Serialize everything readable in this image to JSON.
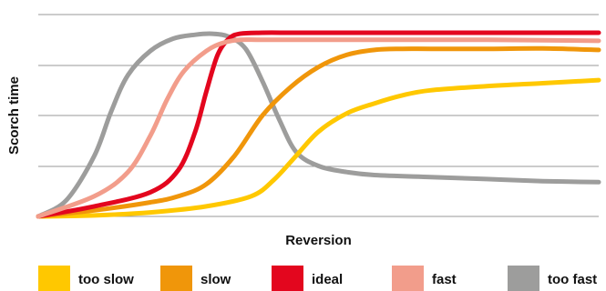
{
  "chart_data": {
    "type": "line",
    "title": "",
    "xlabel": "Reversion",
    "ylabel": "Scorch time",
    "xlim": [
      0,
      100
    ],
    "ylim": [
      0,
      100
    ],
    "grid": true,
    "legend_position": "bottom",
    "series": [
      {
        "name": "too slow",
        "color": "#FFC800",
        "x": [
          0,
          10,
          20,
          30,
          38,
          42,
          46,
          50,
          55,
          60,
          65,
          70,
          80,
          90,
          100
        ],
        "y": [
          0,
          0.5,
          2,
          5,
          10,
          18,
          30,
          42,
          51,
          56,
          60,
          62.5,
          64.5,
          66,
          67.5
        ]
      },
      {
        "name": "slow",
        "color": "#F0960A",
        "x": [
          0,
          10,
          20,
          25,
          30,
          35,
          40,
          45,
          50,
          55,
          60,
          65,
          70,
          80,
          90,
          100
        ],
        "y": [
          0,
          3,
          7,
          10,
          16,
          30,
          50,
          64,
          74,
          80,
          82.5,
          83,
          83,
          83,
          83.2,
          82.5
        ]
      },
      {
        "name": "ideal",
        "color": "#E3061E",
        "x": [
          0,
          10,
          20,
          25,
          28,
          30,
          32,
          34,
          36,
          40,
          45,
          50,
          60,
          80,
          100
        ],
        "y": [
          0,
          5,
          12,
          23,
          42,
          62,
          80,
          88,
          90.5,
          91,
          91,
          91,
          91,
          91,
          91
        ]
      },
      {
        "name": "fast",
        "color": "#F29D8B",
        "x": [
          0,
          10,
          16,
          20,
          23,
          26,
          30,
          33,
          36,
          40,
          50,
          60,
          80,
          100
        ],
        "y": [
          0,
          10,
          22,
          40,
          58,
          72,
          82,
          86,
          87.5,
          87.5,
          87.5,
          87.5,
          87.5,
          87
        ]
      },
      {
        "name": "too fast",
        "color": "#9D9D9C",
        "x": [
          0,
          5,
          10,
          13,
          16,
          20,
          24,
          28,
          31,
          34,
          37,
          40,
          43,
          46,
          50,
          55,
          60,
          70,
          80,
          90,
          100
        ],
        "y": [
          0,
          8,
          30,
          52,
          70,
          82,
          88,
          90,
          90.5,
          89,
          83,
          67,
          48,
          32,
          25,
          22,
          20.5,
          19.5,
          18.5,
          17.5,
          17
        ]
      }
    ]
  }
}
